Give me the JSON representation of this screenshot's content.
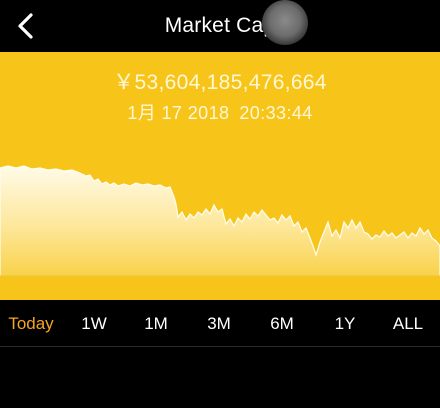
{
  "header": {
    "title": "Market Cap",
    "back_icon": "chevron-left-icon"
  },
  "summary": {
    "price": "￥53,604,185,476,664",
    "date": "1月 17 2018",
    "time": "20:33:44"
  },
  "colors": {
    "panel": "#f7c51a",
    "active_range": "#f5a623"
  },
  "ranges": [
    {
      "label": "Today",
      "active": true
    },
    {
      "label": "1W",
      "active": false
    },
    {
      "label": "1M",
      "active": false
    },
    {
      "label": "3M",
      "active": false
    },
    {
      "label": "6M",
      "active": false
    },
    {
      "label": "1Y",
      "active": false
    },
    {
      "label": "ALL",
      "active": false
    }
  ]
}
